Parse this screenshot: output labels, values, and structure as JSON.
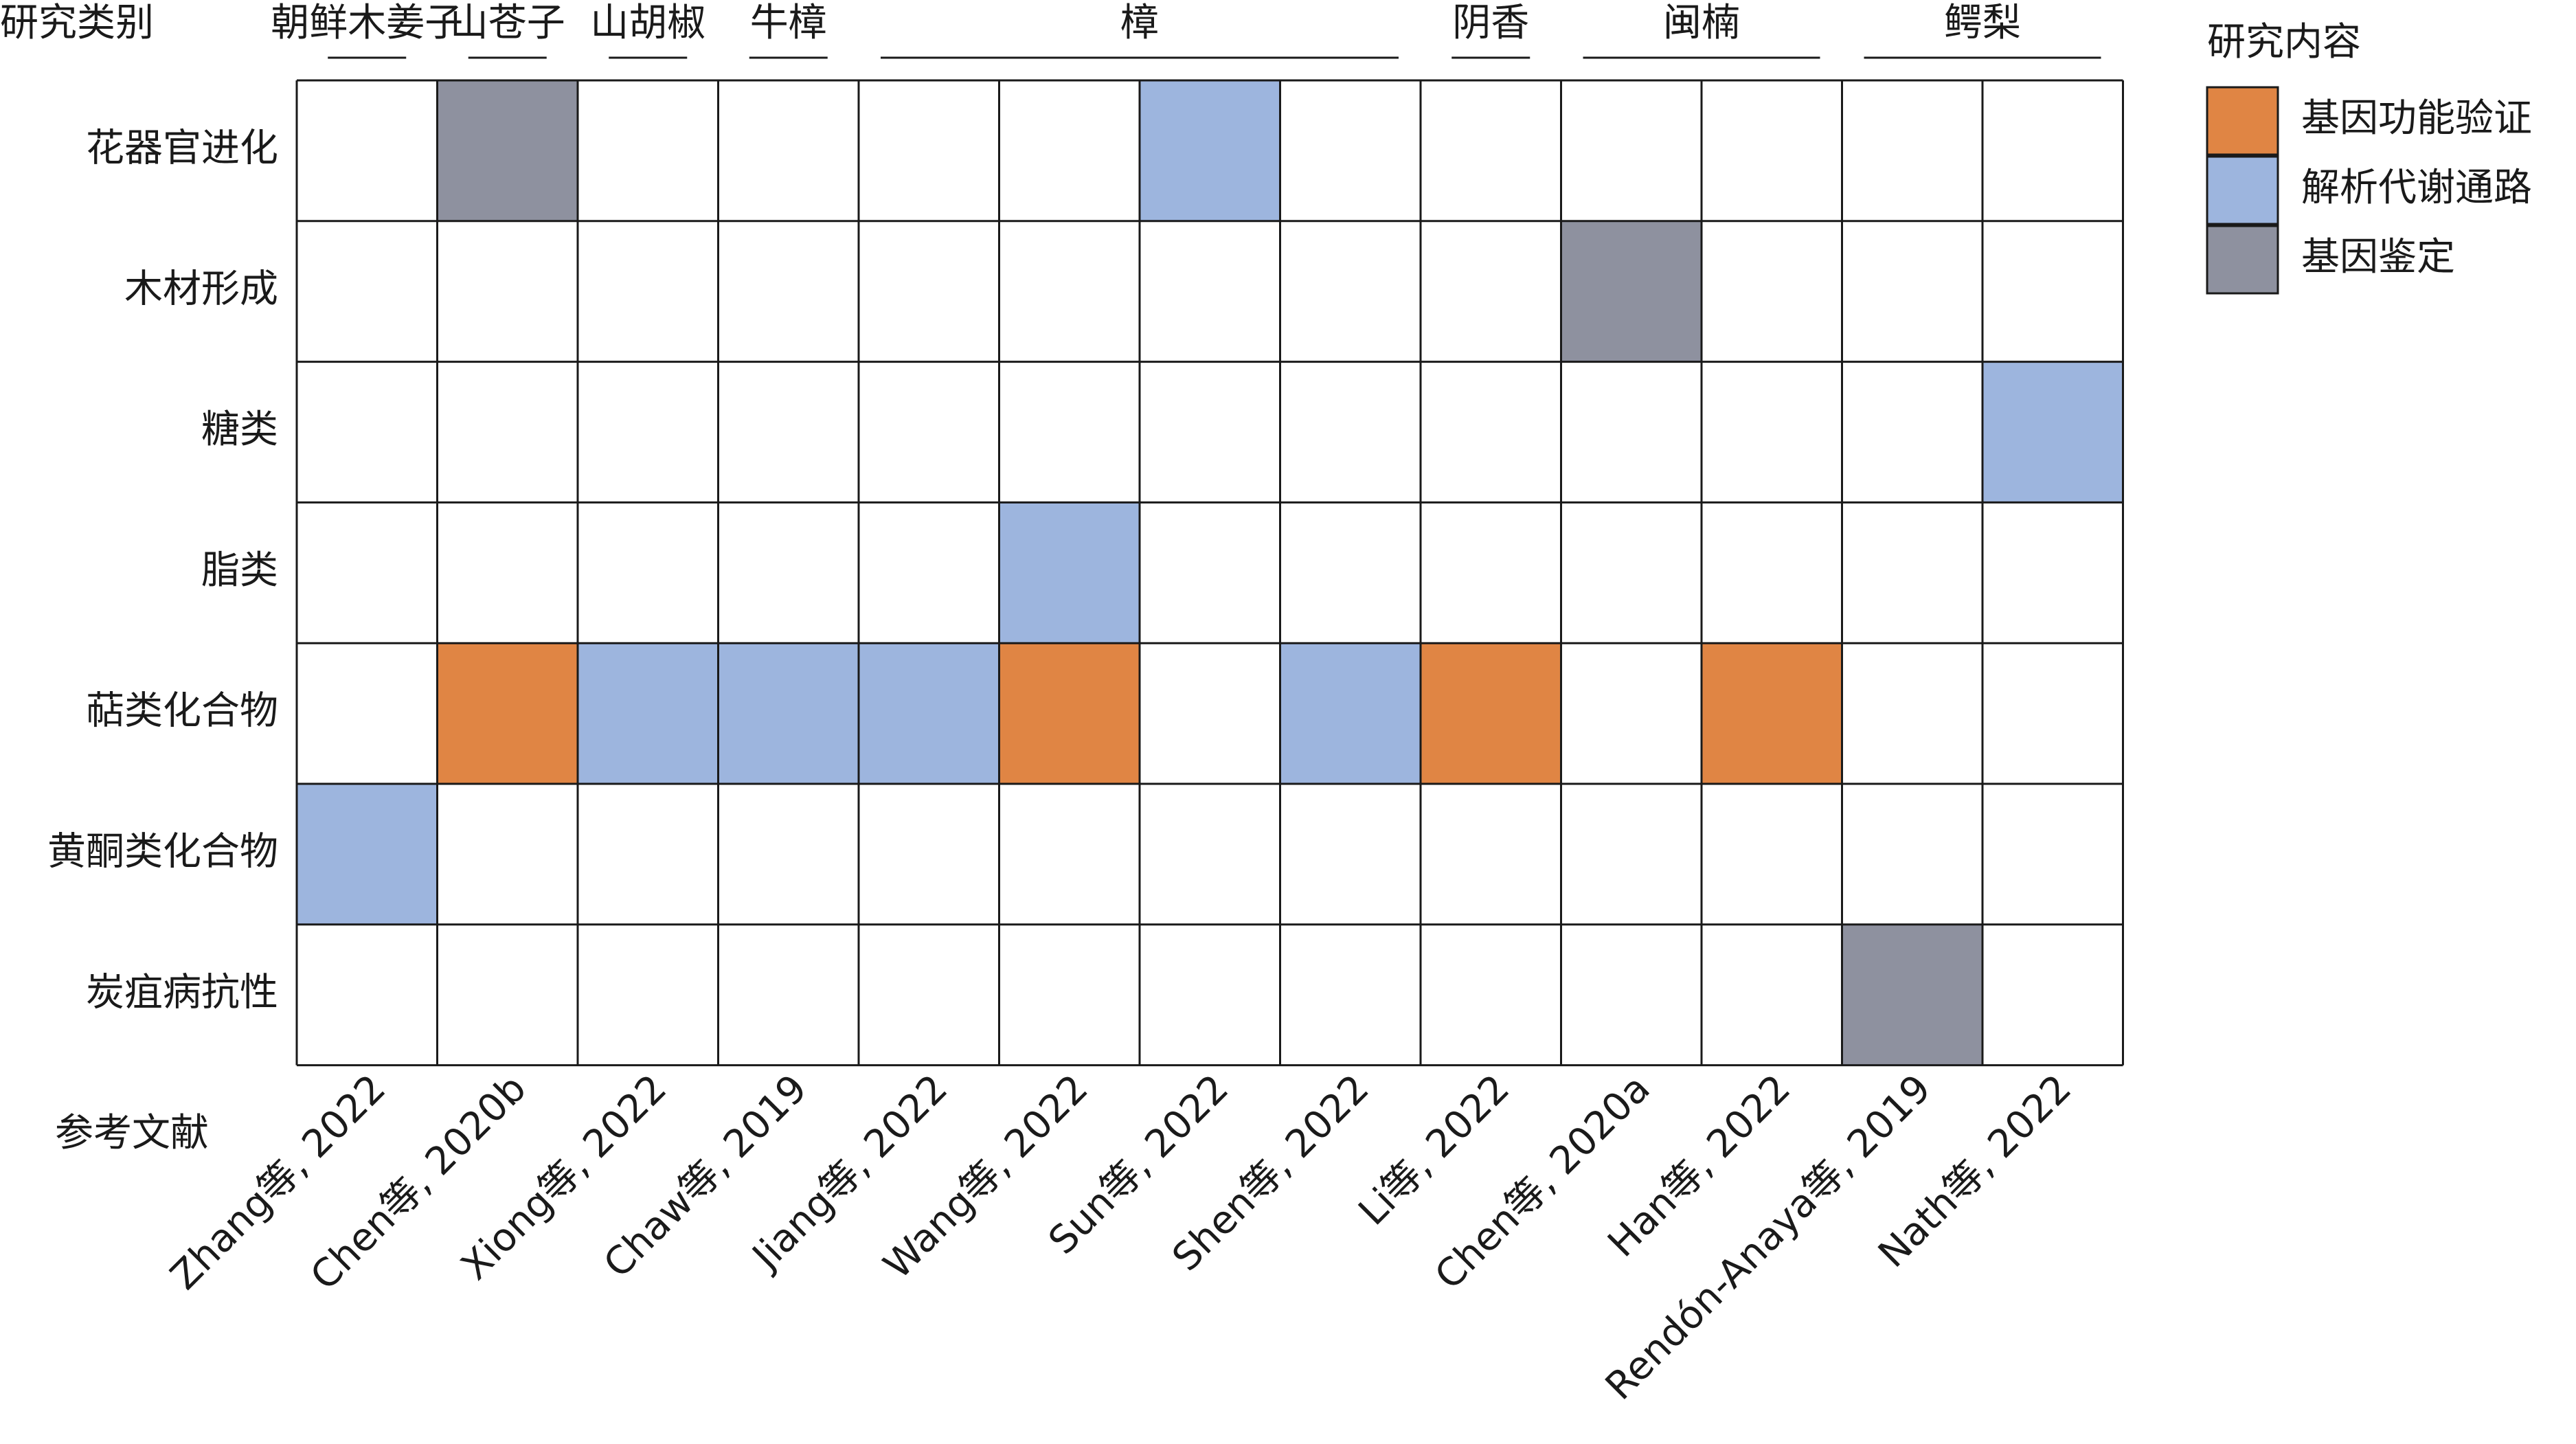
{
  "chart_data": {
    "type": "heatmap",
    "corner_label": "研究类别",
    "xlabel": "参考文献",
    "species": [
      {
        "name": "朝鲜木姜子",
        "cols": [
          0,
          0
        ]
      },
      {
        "name": "山苍子",
        "cols": [
          1,
          1
        ]
      },
      {
        "name": "山胡椒",
        "cols": [
          2,
          2
        ]
      },
      {
        "name": "牛樟",
        "cols": [
          3,
          3
        ]
      },
      {
        "name": "樟",
        "cols": [
          4,
          7
        ]
      },
      {
        "name": "阴香",
        "cols": [
          8,
          8
        ]
      },
      {
        "name": "闽楠",
        "cols": [
          9,
          10
        ]
      },
      {
        "name": "鳄梨",
        "cols": [
          11,
          12
        ]
      }
    ],
    "columns": [
      "Zhang等, 2022",
      "Chen等, 2020b",
      "Xiong等, 2022",
      "Chaw等, 2019",
      "Jiang等, 2022",
      "Wang等, 2022",
      "Sun等, 2022",
      "Shen等, 2022",
      "Li等, 2022",
      "Chen等, 2020a",
      "Han等, 2022",
      "Rendón-Anaya等, 2019",
      "Nath等, 2022"
    ],
    "rows": [
      "花器官进化",
      "木材形成",
      "糖类",
      "脂类",
      "萜类化合物",
      "黄酮类化合物",
      "炭疽病抗性"
    ],
    "legend": {
      "title": "研究内容",
      "position": "top-right",
      "items": [
        {
          "key": "func",
          "label": "基因功能验证",
          "color": "#e08544"
        },
        {
          "key": "path",
          "label": "解析代谢通路",
          "color": "#9db5de"
        },
        {
          "key": "ident",
          "label": "基因鉴定",
          "color": "#8e919f"
        }
      ]
    },
    "cells": [
      {
        "row": 0,
        "col": 1,
        "category": "ident"
      },
      {
        "row": 0,
        "col": 6,
        "category": "path"
      },
      {
        "row": 1,
        "col": 9,
        "category": "ident"
      },
      {
        "row": 2,
        "col": 12,
        "category": "path"
      },
      {
        "row": 3,
        "col": 5,
        "category": "path"
      },
      {
        "row": 4,
        "col": 1,
        "category": "func"
      },
      {
        "row": 4,
        "col": 2,
        "category": "path"
      },
      {
        "row": 4,
        "col": 3,
        "category": "path"
      },
      {
        "row": 4,
        "col": 4,
        "category": "path"
      },
      {
        "row": 4,
        "col": 5,
        "category": "func"
      },
      {
        "row": 4,
        "col": 7,
        "category": "path"
      },
      {
        "row": 4,
        "col": 8,
        "category": "func"
      },
      {
        "row": 4,
        "col": 10,
        "category": "func"
      },
      {
        "row": 5,
        "col": 0,
        "category": "path"
      },
      {
        "row": 6,
        "col": 11,
        "category": "ident"
      }
    ]
  }
}
